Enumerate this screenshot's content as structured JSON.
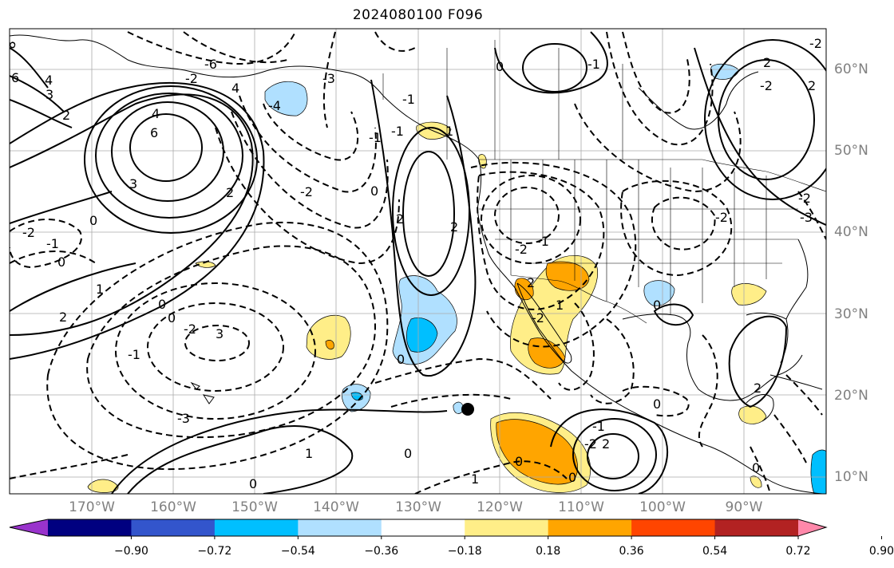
{
  "title": "2024080100 F096",
  "latitude_labels": [
    {
      "text": "60°N"
    },
    {
      "text": "50°N"
    },
    {
      "text": "40°N"
    },
    {
      "text": "30°N"
    },
    {
      "text": "20°N"
    },
    {
      "text": "10°N"
    }
  ],
  "longitude_labels": [
    {
      "text": "170°W"
    },
    {
      "text": "160°W"
    },
    {
      "text": "150°W"
    },
    {
      "text": "140°W"
    },
    {
      "text": "130°W"
    },
    {
      "text": "120°W"
    },
    {
      "text": "110°W"
    },
    {
      "text": "100°W"
    },
    {
      "text": "90°W"
    }
  ],
  "colorbar": {
    "ticks": [
      "−0.90",
      "−0.72",
      "−0.54",
      "−0.36",
      "−0.18",
      "0.18",
      "0.36",
      "0.54",
      "0.72",
      "0.90"
    ],
    "colors": [
      "#9933cc",
      "#000080",
      "#3355cc",
      "#00bfff",
      "#b0e0ff",
      "#ffffff",
      "#ffee88",
      "#ffa500",
      "#ff4500",
      "#b22222",
      "#ff88aa"
    ]
  },
  "contour_labels": [
    "8",
    "6",
    "4",
    "3",
    "2",
    "6",
    "4",
    "3",
    "2",
    "0",
    "-2",
    "-1",
    "0",
    "1",
    "0",
    "2",
    "3",
    "-2",
    "-3",
    "-2",
    "-4",
    "-6",
    "4",
    "-3",
    "-1",
    "0",
    "2",
    "2",
    "-2",
    "-2",
    "-1",
    "0",
    "1",
    "1",
    "-2",
    "2",
    "-1",
    "-2",
    "0",
    "-1",
    "2",
    "-2",
    "2",
    "-2",
    "-3",
    "-2",
    "0",
    "0",
    "1",
    "-1",
    "0",
    "-1",
    "2",
    "-2",
    "-1",
    "1",
    "0",
    "0",
    "0",
    "0",
    "0",
    "2"
  ],
  "marker": "storm-center"
}
